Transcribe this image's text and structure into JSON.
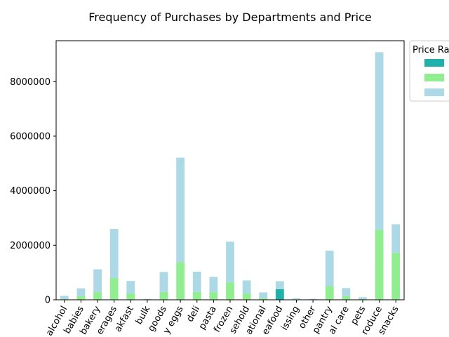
{
  "chart_data": {
    "type": "bar",
    "stacked": true,
    "title": "Frequency of Purchases by Departments and Price",
    "xlabel": "",
    "ylabel": "",
    "ylim": [
      0,
      9500000
    ],
    "yticks": [
      0,
      2000000,
      4000000,
      6000000,
      8000000
    ],
    "ytick_labels": [
      "0",
      "2000000",
      "4000000",
      "6000000",
      "8000000"
    ],
    "categories": [
      "alcohol",
      "babies",
      "bakery",
      "beverages",
      "breakfast",
      "bulk",
      "canned goods",
      "dairy eggs",
      "deli",
      "dry goods pasta",
      "frozen",
      "household",
      "international",
      "meat seafood",
      "missing",
      "other",
      "pantry",
      "personal care",
      "pets",
      "produce",
      "snacks"
    ],
    "category_labels": [
      "alcohol",
      "babies",
      "bakery",
      "erages",
      "akfast",
      "bulk",
      "goods",
      "y eggs",
      "deli",
      "pasta",
      "frozen",
      "sehold",
      "ational",
      "eafood",
      "issing",
      "other",
      "pantry",
      "al care",
      "pets",
      "roduce",
      "snacks"
    ],
    "legend_title": "Price Ra",
    "series": [
      {
        "name": "",
        "color": "#20b2aa",
        "values": [
          0,
          0,
          0,
          0,
          0,
          0,
          0,
          0,
          0,
          0,
          0,
          0,
          0,
          390000,
          0,
          0,
          0,
          0,
          0,
          0,
          0
        ]
      },
      {
        "name": "",
        "color": "#90ee90",
        "values": [
          25000,
          130000,
          280000,
          800000,
          230000,
          15000,
          290000,
          1380000,
          290000,
          280000,
          640000,
          230000,
          70000,
          0,
          15000,
          10000,
          500000,
          130000,
          25000,
          2570000,
          1730000
        ]
      },
      {
        "name": "",
        "color": "#add8e6",
        "values": [
          120000,
          290000,
          840000,
          1800000,
          460000,
          20000,
          730000,
          3830000,
          740000,
          560000,
          1490000,
          480000,
          200000,
          290000,
          40000,
          25000,
          1300000,
          300000,
          70000,
          6510000,
          1040000
        ]
      }
    ]
  }
}
